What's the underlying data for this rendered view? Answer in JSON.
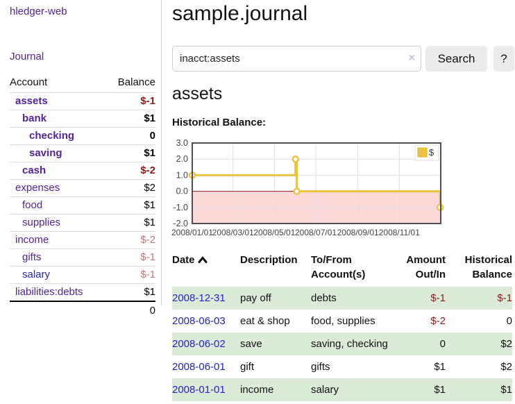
{
  "app": {
    "title": "hledger-web"
  },
  "sidebar": {
    "journal_link": "Journal",
    "headers": [
      "Account",
      "Balance"
    ],
    "accounts": [
      {
        "name": "assets",
        "indent": 0,
        "bold": true,
        "balance": "$-1",
        "balance_class": "neg-strong"
      },
      {
        "name": "bank",
        "indent": 1,
        "bold": true,
        "balance": "$1",
        "balance_class": "pos"
      },
      {
        "name": "checking",
        "indent": 2,
        "bold": true,
        "balance": "0",
        "balance_class": "pos"
      },
      {
        "name": "saving",
        "indent": 2,
        "bold": true,
        "balance": "$1",
        "balance_class": "pos"
      },
      {
        "name": "cash",
        "indent": 1,
        "bold": true,
        "balance": "$-2",
        "balance_class": "neg-strong"
      },
      {
        "name": "expenses",
        "indent": 0,
        "bold": false,
        "balance": "$2",
        "balance_class": "pos"
      },
      {
        "name": "food",
        "indent": 1,
        "bold": false,
        "balance": "$1",
        "balance_class": "pos"
      },
      {
        "name": "supplies",
        "indent": 1,
        "bold": false,
        "balance": "$1",
        "balance_class": "pos"
      },
      {
        "name": "income",
        "indent": 0,
        "bold": false,
        "balance": "$-2",
        "balance_class": "neg-soft"
      },
      {
        "name": "gifts",
        "indent": 1,
        "bold": false,
        "balance": "$-1",
        "balance_class": "neg-soft"
      },
      {
        "name": "salary",
        "indent": 1,
        "bold": false,
        "balance": "$-1",
        "balance_class": "neg-soft",
        "link_color": "blue"
      },
      {
        "name": "liabilities:debts",
        "indent": 0,
        "bold": false,
        "balance": "$1",
        "balance_class": "pos"
      }
    ],
    "total": "0"
  },
  "header": {
    "title": "sample.journal"
  },
  "search": {
    "value": "inacct:assets",
    "clear_icon": "×",
    "button_label": "Search",
    "help_label": "?"
  },
  "account_page": {
    "title": "assets",
    "chart_label": "Historical Balance:"
  },
  "chart_data": {
    "type": "line",
    "step": true,
    "title": "Historical Balance",
    "legend_position": "top-right",
    "series": [
      {
        "name": "$",
        "color": "#edc240",
        "points": [
          [
            "2008-01-01",
            1
          ],
          [
            "2008-06-01",
            2
          ],
          [
            "2008-06-03",
            0
          ],
          [
            "2008-12-31",
            -1
          ]
        ]
      }
    ],
    "x_domain": [
      "2008-01-01",
      "2009-01-01"
    ],
    "ylim": [
      -2,
      3
    ],
    "yticks": [
      {
        "v": 3,
        "label": "3.0"
      },
      {
        "v": 2,
        "label": "2.0"
      },
      {
        "v": 1,
        "label": "1.0"
      },
      {
        "v": 0,
        "label": "0.0"
      },
      {
        "v": -1,
        "label": "-1.0"
      },
      {
        "v": -2,
        "label": "-2.0"
      }
    ],
    "xticks": [
      {
        "date": "2008-01-01",
        "label": "2008/01/01"
      },
      {
        "date": "2008-03-01",
        "label": "2008/03/01"
      },
      {
        "date": "2008-05-01",
        "label": "2008/05/01"
      },
      {
        "date": "2008-07-01",
        "label": "2008/07/01"
      },
      {
        "date": "2008-09-01",
        "label": "2008/09/01"
      },
      {
        "date": "2008-11-01",
        "label": "2008/11/01"
      }
    ],
    "colors": {
      "grid": "#e0e0e0",
      "border": "#4f4f4f",
      "zero_line": "#8f1a1a",
      "negative_region": "#fcdada",
      "legend_box_border": "#ddd",
      "legend_swatch_border": "#d7b532"
    }
  },
  "register": {
    "headers": {
      "date": "Date",
      "sort": "asc",
      "description": "Description",
      "account_line1": "To/From",
      "account_line2": "Account(s)",
      "amount_line1": "Amount",
      "amount_line2": "Out/In",
      "balance_line1": "Historical",
      "balance_line2": "Balance"
    },
    "rows": [
      {
        "date": "2008-12-31",
        "description": "pay off",
        "accounts": "debts",
        "amount": "$-1",
        "amount_neg": true,
        "balance": "$-1",
        "balance_neg": true,
        "shaded": true
      },
      {
        "date": "2008-06-03",
        "description": "eat & shop",
        "accounts": "food, supplies",
        "amount": "$-2",
        "amount_neg": true,
        "balance": "0",
        "balance_neg": false,
        "shaded": false
      },
      {
        "date": "2008-06-02",
        "description": "save",
        "accounts": "saving, checking",
        "amount": "0",
        "amount_neg": false,
        "balance": "$2",
        "balance_neg": false,
        "shaded": true
      },
      {
        "date": "2008-06-01",
        "description": "gift",
        "accounts": "gifts",
        "amount": "$1",
        "amount_neg": false,
        "balance": "$2",
        "balance_neg": false,
        "shaded": false
      },
      {
        "date": "2008-01-01",
        "description": "income",
        "accounts": "salary",
        "amount": "$1",
        "amount_neg": false,
        "balance": "$1",
        "balance_neg": false,
        "shaded": true
      }
    ]
  }
}
